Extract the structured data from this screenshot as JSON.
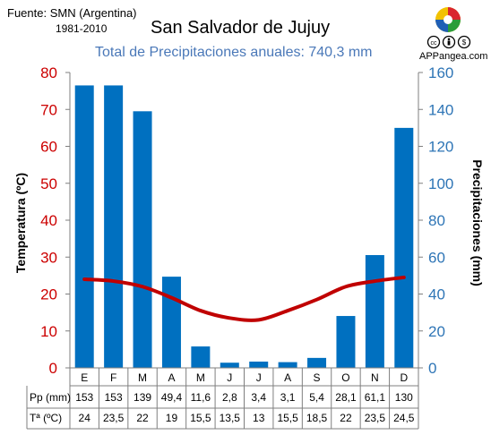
{
  "header": {
    "source": "Fuente: SMN (Argentina)",
    "period": "1981-2010",
    "title": "San Salvador de Jujuy",
    "subtitle": "Total de Precipitaciones anuales: 740,3 mm",
    "logo_text": "APPangea.com"
  },
  "colors": {
    "bars": "#0070c0",
    "temperature_line": "#c00000",
    "left_axis": "#cc0000",
    "right_axis": "#2e75b6",
    "subtitle": "#4a78b8"
  },
  "icons": [
    "puzzle-logo-icon",
    "cc-icon",
    "by-icon",
    "nc-icon"
  ],
  "chart_data": {
    "type": "bar+line",
    "title": "San Salvador de Jujuy",
    "subtitle": "Total de Precipitaciones anuales: 740,3 mm",
    "categories": [
      "E",
      "F",
      "M",
      "A",
      "M",
      "J",
      "J",
      "A",
      "S",
      "O",
      "N",
      "D"
    ],
    "series": [
      {
        "name": "Pp (mm)",
        "type": "bar",
        "axis": "right",
        "values": [
          153,
          153,
          139,
          49.4,
          11.6,
          2.8,
          3.4,
          3.1,
          5.4,
          28.1,
          61.1,
          130
        ],
        "labels": [
          "153",
          "153",
          "139",
          "49,4",
          "11,6",
          "2,8",
          "3,4",
          "3,1",
          "5,4",
          "28,1",
          "61,1",
          "130"
        ]
      },
      {
        "name": "Tª (ºC)",
        "type": "line",
        "axis": "left",
        "values": [
          24,
          23.5,
          22,
          19,
          15.5,
          13.5,
          13,
          15.5,
          18.5,
          22,
          23.5,
          24.5
        ],
        "labels": [
          "24",
          "23,5",
          "22",
          "19",
          "15,5",
          "13,5",
          "13",
          "15,5",
          "18,5",
          "22",
          "23,5",
          "24,5"
        ]
      }
    ],
    "left_axis": {
      "label": "Temperatura (ºC)",
      "min": 0,
      "max": 80,
      "ticks": [
        0,
        10,
        20,
        30,
        40,
        50,
        60,
        70,
        80
      ]
    },
    "right_axis": {
      "label": "Precipitaciones (mm)",
      "min": 0,
      "max": 160,
      "ticks": [
        0,
        20,
        40,
        60,
        80,
        100,
        120,
        140,
        160
      ]
    },
    "grid": false
  }
}
